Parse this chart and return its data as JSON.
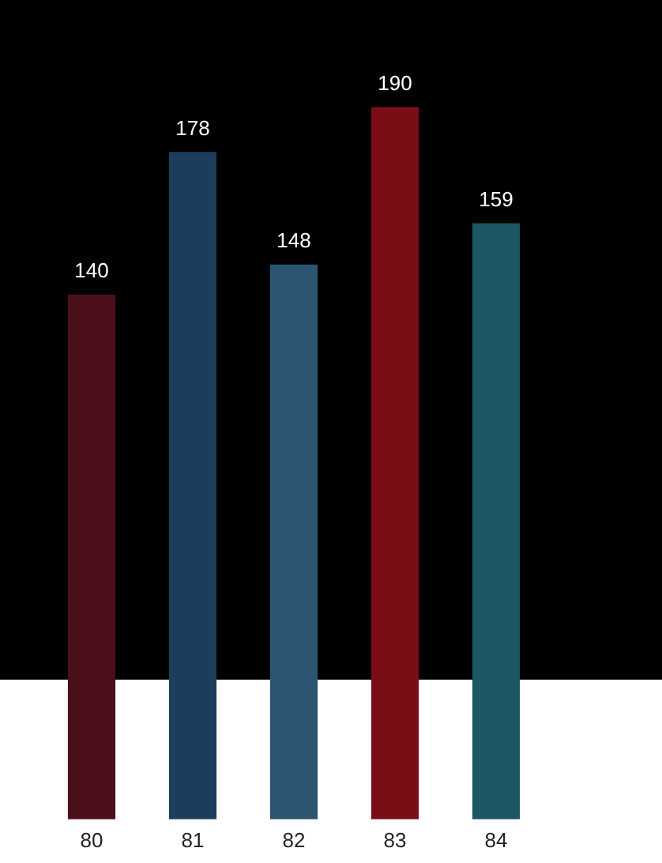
{
  "chart_data": {
    "type": "bar",
    "categories": [
      "80",
      "81",
      "82",
      "83",
      "84"
    ],
    "values": [
      140,
      178,
      148,
      190,
      159
    ],
    "colors": [
      "#4a0f18",
      "#1d3d5c",
      "#2b5570",
      "#7a0d16",
      "#1f5663"
    ],
    "data_labels": true,
    "tick_labels": "x",
    "grid": false,
    "legend": false
  }
}
